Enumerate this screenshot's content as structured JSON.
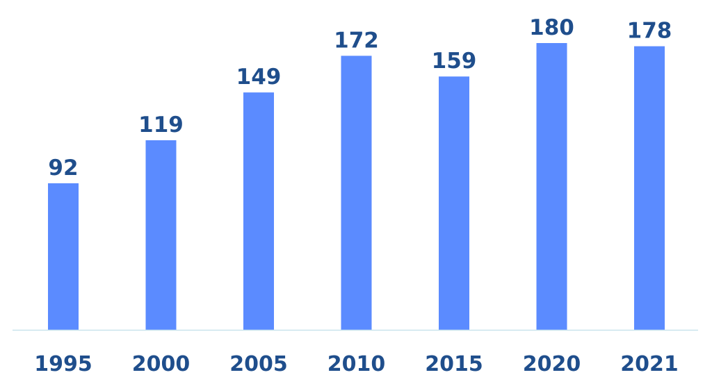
{
  "chart_data": {
    "type": "bar",
    "categories": [
      "1995",
      "2000",
      "2005",
      "2010",
      "2015",
      "2020",
      "2021"
    ],
    "values": [
      92,
      119,
      149,
      172,
      159,
      180,
      178
    ],
    "data_labels": [
      "92",
      "119",
      "149",
      "172",
      "159",
      "180",
      "178"
    ],
    "title": "",
    "xlabel": "",
    "ylabel": "",
    "ylim": [
      0,
      180
    ],
    "grid": false,
    "legend": "none",
    "colors": {
      "bar": "#5b8bff",
      "label": "#1f4e8c",
      "axis": "#c9e3ec"
    }
  }
}
